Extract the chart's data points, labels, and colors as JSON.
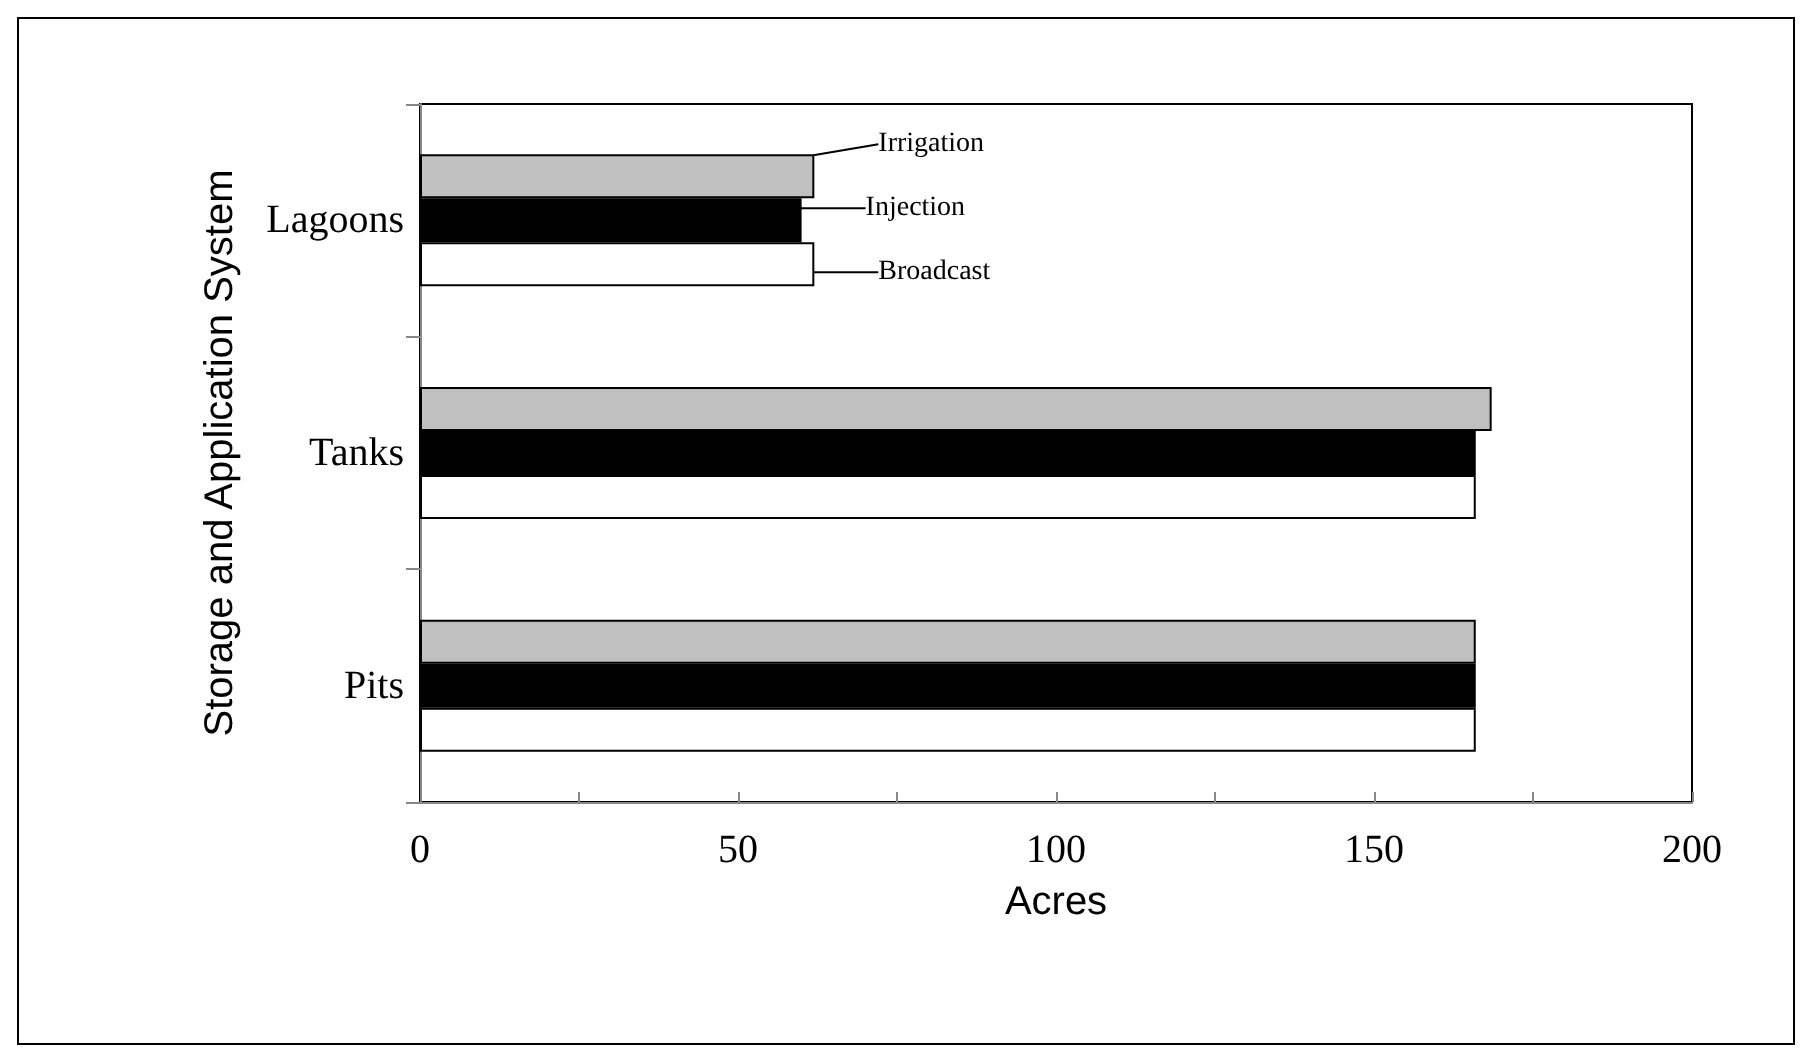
{
  "chart_data": {
    "type": "bar",
    "orientation": "horizontal",
    "xlabel": "Acres",
    "ylabel": "Storage and Application System",
    "categories": [
      "Lagoons",
      "Tanks",
      "Pits"
    ],
    "series": [
      {
        "name": "Irrigation",
        "color": "#c0c0c0",
        "values": [
          62,
          168.5,
          166
        ]
      },
      {
        "name": "Injection",
        "color": "#000000",
        "values": [
          60,
          166,
          166
        ]
      },
      {
        "name": "Broadcast",
        "color": "#ffffff",
        "values": [
          62,
          166,
          166
        ]
      }
    ],
    "xlim": [
      0,
      200
    ],
    "xticks": [
      0,
      {
        "value": 25,
        "label": null
      },
      50,
      {
        "value": 75,
        "label": null
      },
      100,
      {
        "value": 125,
        "label": null
      },
      150,
      {
        "value": 175,
        "label": null
      },
      200
    ],
    "grid": false,
    "legend": "top left"
  }
}
